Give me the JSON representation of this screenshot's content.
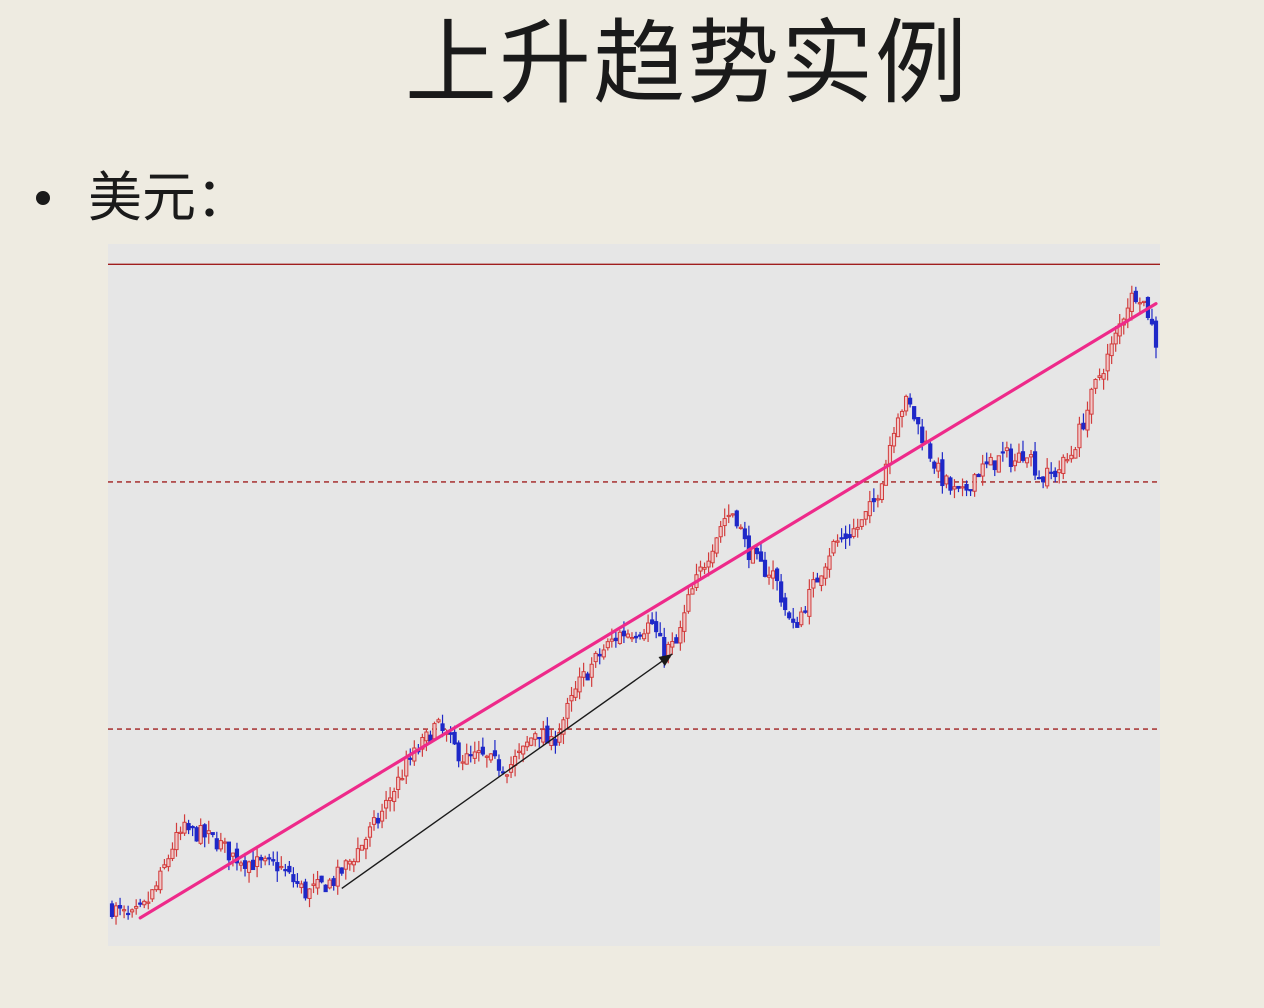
{
  "slide": {
    "title": "上升趋势实例",
    "bullet": "美元："
  },
  "colors": {
    "background": "#eeebe1",
    "plot_background": "#e6e6e6",
    "up_candle": "#d23c3c",
    "down_candle": "#1e28c8",
    "trend_line": "#ee2a8a",
    "level_line": "#a01e1e",
    "arrow": "#1a1a1a"
  },
  "chart_data": {
    "type": "candlestick",
    "ylim": [
      0,
      100
    ],
    "x_count": 260,
    "levels": [
      {
        "value": 97.1,
        "style": "solid"
      },
      {
        "value": 66.1,
        "style": "dashed"
      },
      {
        "value": 30.9,
        "style": "dashed"
      }
    ],
    "trend_line": {
      "start": [
        7,
        4.0
      ],
      "end": [
        259,
        91.5
      ]
    },
    "arrow": {
      "start": [
        57,
        8.2
      ],
      "end": [
        139,
        41.6
      ]
    },
    "close_path": [
      [
        0,
        5.5
      ],
      [
        5,
        3.8
      ],
      [
        9,
        5.5
      ],
      [
        13,
        9.0
      ],
      [
        17,
        14.5
      ],
      [
        20,
        16.5
      ],
      [
        24,
        16.0
      ],
      [
        29,
        15.0
      ],
      [
        33,
        13.0
      ],
      [
        38,
        12.0
      ],
      [
        42,
        11.5
      ],
      [
        46,
        11.5
      ],
      [
        50,
        9.5
      ],
      [
        54,
        7.5
      ],
      [
        58,
        8.5
      ],
      [
        62,
        9.5
      ],
      [
        66,
        12.0
      ],
      [
        70,
        15.0
      ],
      [
        74,
        18.0
      ],
      [
        78,
        22.0
      ],
      [
        82,
        26.0
      ],
      [
        86,
        28.5
      ],
      [
        90,
        31.5
      ],
      [
        94,
        29.0
      ],
      [
        98,
        26.5
      ],
      [
        102,
        27.0
      ],
      [
        106,
        26.0
      ],
      [
        110,
        25.5
      ],
      [
        114,
        27.5
      ],
      [
        118,
        31.0
      ],
      [
        122,
        28.5
      ],
      [
        126,
        33.0
      ],
      [
        130,
        37.5
      ],
      [
        134,
        40.5
      ],
      [
        138,
        43.0
      ],
      [
        141,
        44.5
      ],
      [
        146,
        45.0
      ],
      [
        150,
        46.0
      ],
      [
        153,
        42.0
      ],
      [
        157,
        43.0
      ],
      [
        160,
        49.0
      ],
      [
        164,
        54.0
      ],
      [
        167,
        57.5
      ],
      [
        170,
        61.0
      ],
      [
        173,
        62.0
      ],
      [
        176,
        57.0
      ],
      [
        180,
        54.0
      ],
      [
        184,
        53.0
      ],
      [
        187,
        48.0
      ],
      [
        189,
        45.0
      ],
      [
        192,
        48.0
      ],
      [
        196,
        52.5
      ],
      [
        200,
        57.0
      ],
      [
        204,
        58.5
      ],
      [
        208,
        60.0
      ],
      [
        212,
        63.5
      ],
      [
        215,
        69.0
      ],
      [
        218,
        76.0
      ],
      [
        221,
        77.5
      ],
      [
        224,
        74.0
      ],
      [
        227,
        70.5
      ],
      [
        230,
        67.0
      ],
      [
        233,
        65.0
      ],
      [
        236,
        64.0
      ],
      [
        240,
        67.5
      ],
      [
        244,
        68.5
      ],
      [
        248,
        70.0
      ],
      [
        251,
        69.0
      ],
      [
        254,
        71.0
      ],
      [
        258,
        66.5
      ],
      [
        262,
        67.5
      ],
      [
        266,
        69.5
      ],
      [
        270,
        75.0
      ],
      [
        274,
        81.0
      ],
      [
        278,
        85.5
      ],
      [
        282,
        91.5
      ],
      [
        285,
        93.5
      ],
      [
        288,
        90.0
      ],
      [
        290,
        86.0
      ]
    ]
  }
}
